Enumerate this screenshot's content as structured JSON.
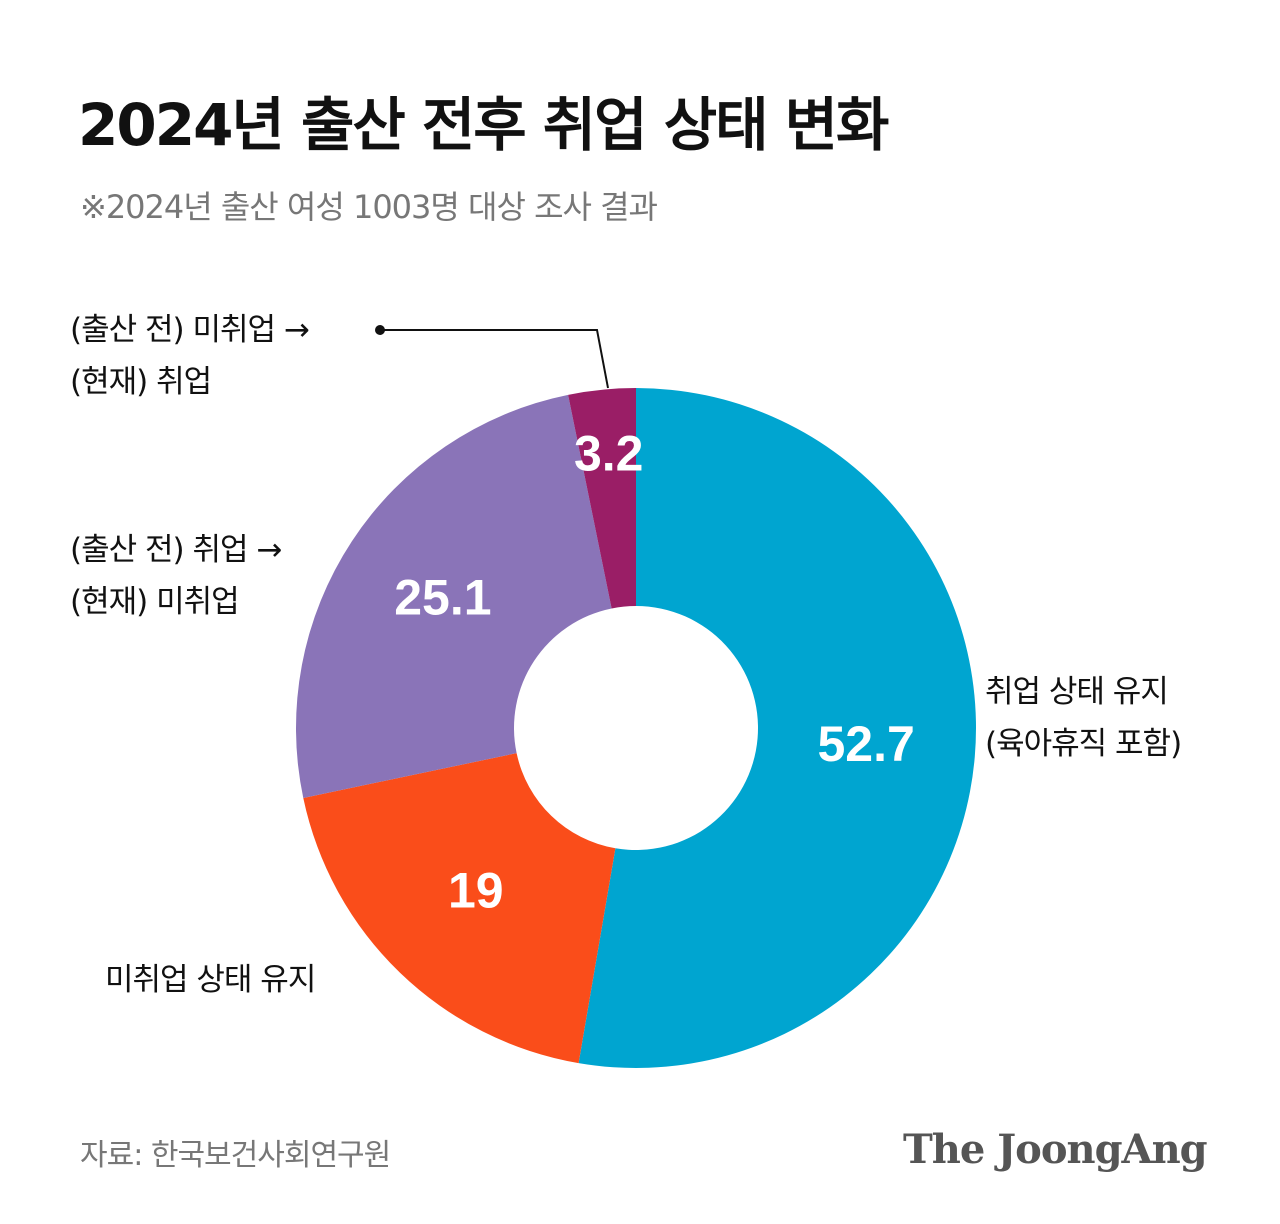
{
  "chart_data": {
    "type": "donut",
    "title": "2024년 출산 전후 취업 상태 변화",
    "subtitle": "※2024년 출산 여성 1003명 대상 조사 결과",
    "categories": [
      "취업 상태 유지\n(육아휴직 포함)",
      "미취업 상태 유지",
      "(출산 전) 취업 →\n(현재) 미취업",
      "(출산 전) 미취업 →\n(현재) 취업"
    ],
    "values": [
      52.7,
      19,
      25.1,
      3.2
    ],
    "colors": [
      "#00a5d0",
      "#fa4d1a",
      "#8a74b8",
      "#9a1e66"
    ],
    "source": "자료: 한국보건사회연구원",
    "brand": "The JoongAng"
  }
}
